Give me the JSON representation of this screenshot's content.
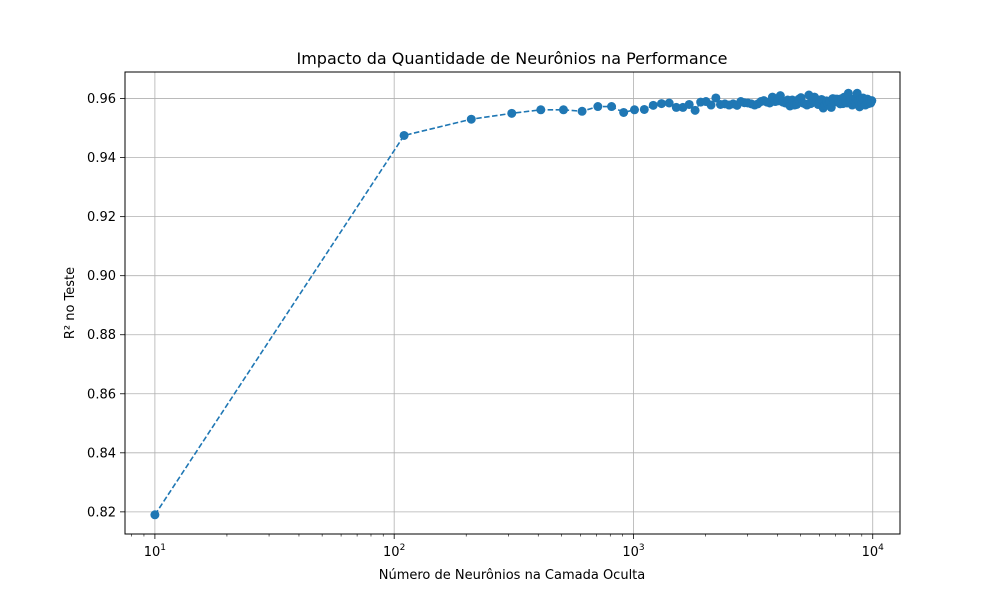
{
  "chart_data": {
    "type": "line",
    "title": "Impacto da Quantidade de Neurônios na Performance",
    "xlabel": "Número de Neurônios na Camada Oculta",
    "ylabel": "R² no Teste",
    "x_scale": "log",
    "xlim": [
      7.5,
      13000
    ],
    "ylim": [
      0.8125,
      0.969
    ],
    "x_ticks": [
      {
        "value": 10,
        "base": "10",
        "exp": "1"
      },
      {
        "value": 100,
        "base": "10",
        "exp": "2"
      },
      {
        "value": 1000,
        "base": "10",
        "exp": "3"
      },
      {
        "value": 10000,
        "base": "10",
        "exp": "4"
      }
    ],
    "y_ticks": [
      {
        "value": 0.82,
        "label": "0.82"
      },
      {
        "value": 0.84,
        "label": "0.84"
      },
      {
        "value": 0.86,
        "label": "0.86"
      },
      {
        "value": 0.88,
        "label": "0.88"
      },
      {
        "value": 0.9,
        "label": "0.90"
      },
      {
        "value": 0.92,
        "label": "0.92"
      },
      {
        "value": 0.94,
        "label": "0.94"
      },
      {
        "value": 0.96,
        "label": "0.96"
      }
    ],
    "grid": true,
    "line_style": "dashed",
    "marker": "circle",
    "color": "#1f77b4",
    "series": [
      {
        "x": [
          10,
          110,
          210,
          310,
          410,
          510,
          610,
          710,
          810,
          910,
          1010,
          1110,
          1210,
          1310,
          1410,
          1510,
          1610,
          1710,
          1810,
          1910,
          2010,
          2110,
          2210,
          2310,
          2410,
          2510,
          2610,
          2710,
          2810,
          2910,
          3010,
          3110,
          3210,
          3310,
          3410,
          3510,
          3610,
          3710,
          3810,
          3910,
          4010,
          4110,
          4210,
          4310,
          4410,
          4510,
          4610,
          4710,
          4810,
          4910,
          5010,
          5110,
          5210,
          5310,
          5410,
          5510,
          5610,
          5710,
          5810,
          5910,
          6010,
          6110,
          6210,
          6310,
          6410,
          6510,
          6610,
          6710,
          6810,
          6910,
          7010,
          7110,
          7210,
          7310,
          7410,
          7510,
          7610,
          7710,
          7810,
          7910,
          8010,
          8110,
          8210,
          8310,
          8410,
          8510,
          8610,
          8710,
          8810,
          8910,
          9010,
          9110,
          9210,
          9310,
          9410,
          9510,
          9610,
          9710,
          9810,
          9910
        ],
        "y": [
          0.819,
          0.9475,
          0.953,
          0.955,
          0.9562,
          0.9562,
          0.9557,
          0.9573,
          0.9573,
          0.9553,
          0.9562,
          0.9563,
          0.9577,
          0.9583,
          0.9585,
          0.957,
          0.957,
          0.958,
          0.956,
          0.9588,
          0.959,
          0.9578,
          0.9602,
          0.958,
          0.9582,
          0.9578,
          0.9582,
          0.9577,
          0.959,
          0.9586,
          0.9585,
          0.9582,
          0.9578,
          0.9582,
          0.959,
          0.9593,
          0.9588,
          0.9585,
          0.9605,
          0.959,
          0.9592,
          0.961,
          0.9588,
          0.9585,
          0.9595,
          0.9575,
          0.9595,
          0.9578,
          0.958,
          0.9598,
          0.9603,
          0.9585,
          0.9582,
          0.9578,
          0.9612,
          0.9583,
          0.9595,
          0.9605,
          0.9588,
          0.958,
          0.9588,
          0.9597,
          0.9568,
          0.9578,
          0.9592,
          0.958,
          0.9588,
          0.957,
          0.96,
          0.9588,
          0.9598,
          0.9598,
          0.9587,
          0.9582,
          0.96,
          0.9583,
          0.9605,
          0.959,
          0.9585,
          0.9618,
          0.9592,
          0.9598,
          0.9578,
          0.9598,
          0.9585,
          0.9582,
          0.9618,
          0.9592,
          0.9572,
          0.9598,
          0.9585,
          0.9602,
          0.9592,
          0.9578,
          0.9595,
          0.9598,
          0.9583,
          0.9592,
          0.9585,
          0.9593
        ]
      }
    ]
  }
}
